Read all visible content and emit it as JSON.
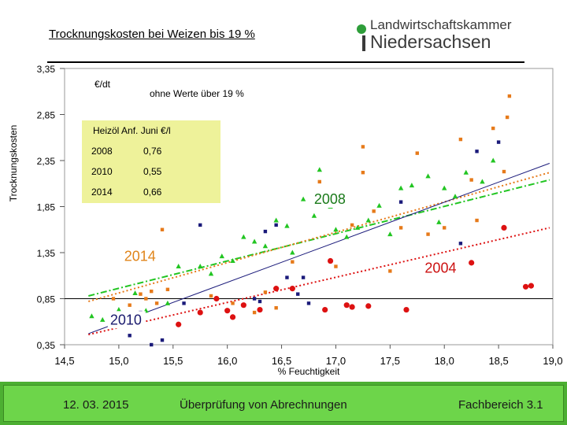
{
  "title": "Trocknungskosten bei Weizen bis 19 %",
  "logo": {
    "line1": "Landwirtschaftskammer",
    "line2": "Niedersachsen",
    "colors": {
      "mark": "#2e9e3a",
      "text": "#3a3a3a"
    }
  },
  "footer": {
    "date": "12. 03. 2015",
    "center": "Überprüfung von Abrechnungen",
    "right": "Fachbereich 3.1",
    "colors": {
      "bar": "#6dd54a",
      "border": "#4caf32"
    }
  },
  "chart_data": {
    "type": "scatter",
    "ylabel": "Trocknungskosten",
    "xlabel": "% Feuchtigkeit",
    "unit_label": "€/dt",
    "note": "ohne Werte über 19 %",
    "xlim": [
      14.5,
      19.0
    ],
    "ylim": [
      0.35,
      3.35
    ],
    "xticks": [
      "14,5",
      "15,0",
      "15,5",
      "16,0",
      "16,5",
      "17,0",
      "17,5",
      "18,0",
      "18,5",
      "19,0"
    ],
    "yticks": [
      "3,35",
      "2,85",
      "2,35",
      "1,85",
      "1,35",
      "0,85",
      "0,35"
    ],
    "reference_line": 0.85,
    "price_table": {
      "header": "Heizöl Anf. Juni €/l",
      "rows": [
        [
          "2008",
          "0,76"
        ],
        [
          "2010",
          "0,55"
        ],
        [
          "2014",
          "0,66"
        ]
      ],
      "color": "#eef29a"
    },
    "annotations": [
      {
        "text": "2008",
        "x": 16.8,
        "y": 1.88,
        "color": "#1a7a1a"
      },
      {
        "text": "2014",
        "x": 15.05,
        "y": 1.26,
        "color": "#e0851a"
      },
      {
        "text": "2004",
        "x": 17.82,
        "y": 1.13,
        "color": "#cc1111"
      },
      {
        "text": "2010",
        "x": 14.92,
        "y": 0.57,
        "color": "#1a1a6e"
      }
    ],
    "series": [
      {
        "name": "2008",
        "marker": "triangle",
        "color": "#22c522",
        "trend": {
          "from": [
            14.72,
            0.88
          ],
          "to": [
            18.97,
            2.14
          ],
          "dash": "dashdot"
        },
        "points": [
          [
            14.75,
            0.66
          ],
          [
            14.85,
            0.62
          ],
          [
            15.0,
            0.73
          ],
          [
            15.05,
            1.35
          ],
          [
            15.15,
            0.91
          ],
          [
            15.25,
            0.72
          ],
          [
            15.45,
            0.8
          ],
          [
            15.55,
            1.2
          ],
          [
            15.75,
            1.2
          ],
          [
            15.85,
            1.12
          ],
          [
            15.95,
            1.31
          ],
          [
            16.05,
            1.26
          ],
          [
            16.15,
            1.52
          ],
          [
            16.25,
            1.47
          ],
          [
            16.35,
            1.42
          ],
          [
            16.45,
            1.7
          ],
          [
            16.55,
            1.64
          ],
          [
            16.6,
            1.35
          ],
          [
            16.7,
            1.93
          ],
          [
            16.8,
            1.75
          ],
          [
            16.85,
            2.25
          ],
          [
            16.95,
            1.85
          ],
          [
            17.0,
            1.6
          ],
          [
            17.1,
            1.52
          ],
          [
            17.2,
            1.62
          ],
          [
            17.3,
            1.7
          ],
          [
            17.4,
            1.86
          ],
          [
            17.5,
            1.55
          ],
          [
            17.6,
            2.05
          ],
          [
            17.7,
            2.08
          ],
          [
            17.85,
            2.18
          ],
          [
            17.95,
            1.68
          ],
          [
            18.0,
            2.05
          ],
          [
            18.1,
            1.96
          ],
          [
            18.2,
            2.22
          ],
          [
            18.35,
            2.12
          ],
          [
            18.45,
            2.35
          ]
        ]
      },
      {
        "name": "2014",
        "marker": "square",
        "color": "#e67a1a",
        "trend": {
          "from": [
            14.72,
            0.82
          ],
          "to": [
            18.97,
            2.22
          ],
          "dash": "dotted"
        },
        "points": [
          [
            14.95,
            0.85
          ],
          [
            15.1,
            0.78
          ],
          [
            15.2,
            0.9
          ],
          [
            15.25,
            0.85
          ],
          [
            15.3,
            0.93
          ],
          [
            15.35,
            0.8
          ],
          [
            15.4,
            1.6
          ],
          [
            15.45,
            0.95
          ],
          [
            15.85,
            0.88
          ],
          [
            16.05,
            0.8
          ],
          [
            16.25,
            0.7
          ],
          [
            16.35,
            0.92
          ],
          [
            16.45,
            0.75
          ],
          [
            16.6,
            1.25
          ],
          [
            16.85,
            2.12
          ],
          [
            17.0,
            1.2
          ],
          [
            17.15,
            1.65
          ],
          [
            17.25,
            2.22
          ],
          [
            17.25,
            2.5
          ],
          [
            17.35,
            1.8
          ],
          [
            17.5,
            1.15
          ],
          [
            17.6,
            1.62
          ],
          [
            17.75,
            2.43
          ],
          [
            17.85,
            1.55
          ],
          [
            18.0,
            1.62
          ],
          [
            18.15,
            2.58
          ],
          [
            18.25,
            2.14
          ],
          [
            18.3,
            1.7
          ],
          [
            18.45,
            2.7
          ],
          [
            18.55,
            2.23
          ],
          [
            18.58,
            2.82
          ],
          [
            18.6,
            3.05
          ]
        ]
      },
      {
        "name": "2004",
        "marker": "circle",
        "color": "#dd1111",
        "trend": {
          "from": [
            14.72,
            0.46
          ],
          "to": [
            18.97,
            1.62
          ],
          "dash": "dotted"
        },
        "points": [
          [
            15.1,
            0.57
          ],
          [
            15.2,
            0.58
          ],
          [
            15.55,
            0.57
          ],
          [
            15.75,
            0.7
          ],
          [
            15.9,
            0.85
          ],
          [
            16.0,
            0.72
          ],
          [
            16.05,
            0.65
          ],
          [
            16.15,
            0.78
          ],
          [
            16.3,
            0.73
          ],
          [
            16.45,
            0.96
          ],
          [
            16.6,
            0.96
          ],
          [
            16.9,
            0.73
          ],
          [
            16.95,
            1.26
          ],
          [
            17.1,
            0.78
          ],
          [
            17.15,
            0.76
          ],
          [
            17.3,
            0.77
          ],
          [
            17.65,
            0.73
          ],
          [
            18.25,
            1.24
          ],
          [
            18.55,
            1.62
          ],
          [
            18.75,
            0.98
          ],
          [
            18.8,
            0.99
          ]
        ]
      },
      {
        "name": "2010",
        "marker": "square",
        "color": "#1a1a7a",
        "trend": {
          "from": [
            14.72,
            0.47
          ],
          "to": [
            18.97,
            2.32
          ],
          "dash": "solid"
        },
        "points": [
          [
            15.1,
            0.45
          ],
          [
            15.2,
            0.7
          ],
          [
            15.3,
            0.35
          ],
          [
            15.4,
            0.4
          ],
          [
            15.6,
            0.8
          ],
          [
            15.75,
            1.65
          ],
          [
            16.25,
            0.85
          ],
          [
            16.3,
            0.82
          ],
          [
            16.35,
            1.58
          ],
          [
            16.45,
            1.65
          ],
          [
            16.55,
            1.08
          ],
          [
            16.65,
            0.9
          ],
          [
            16.7,
            1.08
          ],
          [
            16.75,
            0.8
          ],
          [
            17.6,
            1.9
          ],
          [
            18.15,
            1.45
          ],
          [
            18.3,
            2.45
          ],
          [
            18.5,
            2.55
          ]
        ]
      }
    ]
  }
}
